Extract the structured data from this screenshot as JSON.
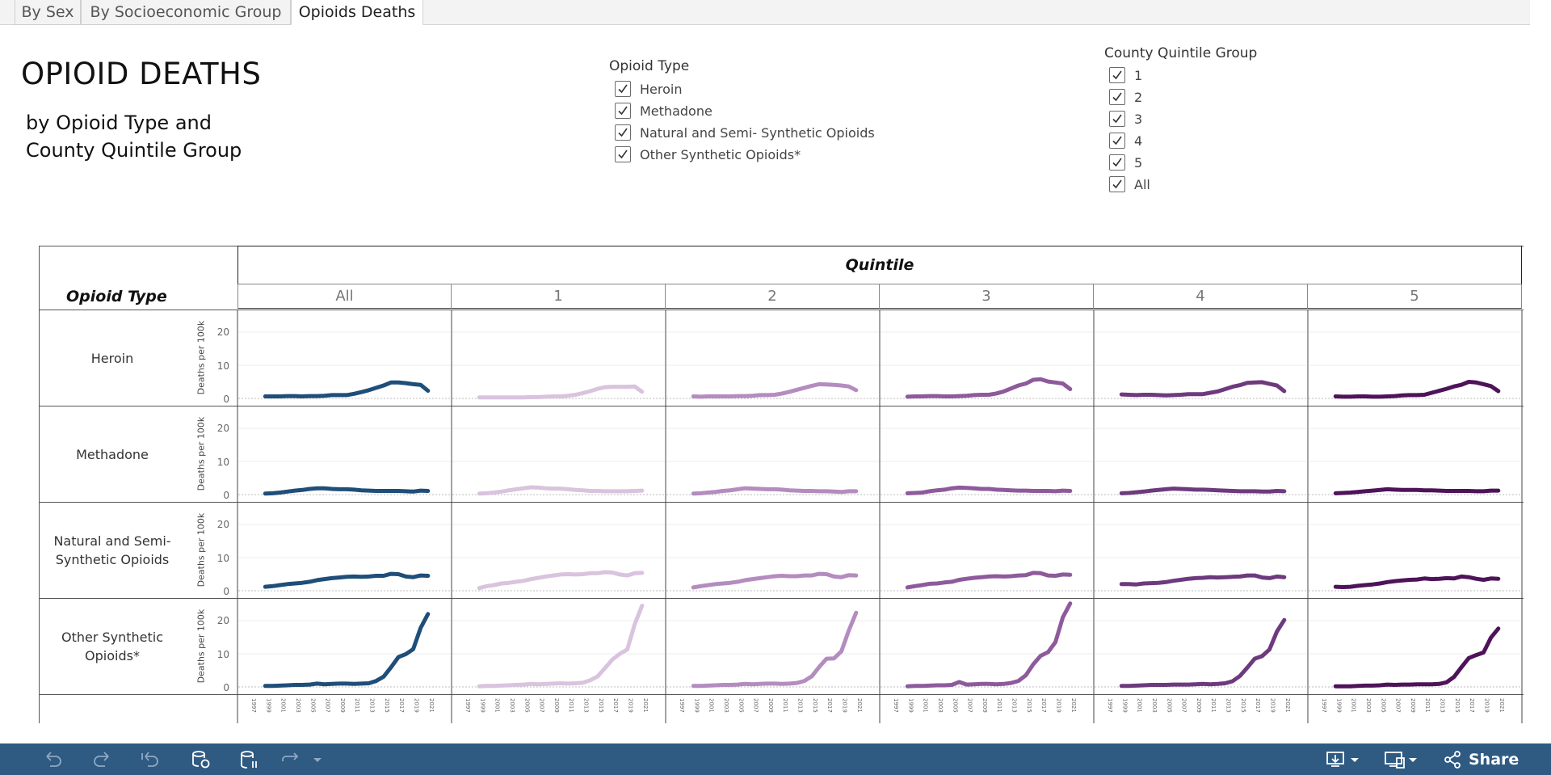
{
  "tabs": [
    {
      "label": "By Sex",
      "active": false
    },
    {
      "label": "By Socioeconomic Group",
      "active": false
    },
    {
      "label": "Opioids Deaths",
      "active": true
    }
  ],
  "title": "OPIOID DEATHS",
  "subtitle": "by Opioid Type and County Quintile Group",
  "filters": {
    "opioid_type": {
      "title": "Opioid Type",
      "options": [
        {
          "label": "Heroin",
          "checked": true
        },
        {
          "label": "Methadone",
          "checked": true
        },
        {
          "label": "Natural and Semi- Synthetic Opioids",
          "checked": true
        },
        {
          "label": "Other Synthetic Opioids*",
          "checked": true
        }
      ]
    },
    "quintile_group": {
      "title": "County Quintile Group",
      "options": [
        {
          "label": "1",
          "checked": true
        },
        {
          "label": "2",
          "checked": true
        },
        {
          "label": "3",
          "checked": true
        },
        {
          "label": "4",
          "checked": true
        },
        {
          "label": "5",
          "checked": true
        },
        {
          "label": "All",
          "checked": true
        }
      ]
    }
  },
  "grid": {
    "column_header_title": "Quintile",
    "row_header_title": "Opioid Type",
    "columns": [
      "All",
      "1",
      "2",
      "3",
      "4",
      "5"
    ],
    "rows": [
      "Heroin",
      "Methadone",
      "Natural and Semi-Synthetic Opioids",
      "Other Synthetic Opioids*"
    ],
    "y_axis_label": "Deaths per 100k",
    "y_ticks": [
      "20",
      "10",
      "0"
    ]
  },
  "chart_data": {
    "type": "line",
    "x": [
      1999,
      2000,
      2001,
      2002,
      2003,
      2004,
      2005,
      2006,
      2007,
      2008,
      2009,
      2010,
      2011,
      2012,
      2013,
      2014,
      2015,
      2016,
      2017,
      2018,
      2019,
      2020,
      2021
    ],
    "x_tick_labels": [
      "1997",
      "1999",
      "2001",
      "2003",
      "2005",
      "2007",
      "2009",
      "2011",
      "2013",
      "2015",
      "2017",
      "2019",
      "2021"
    ],
    "ylim": [
      0,
      25
    ],
    "ylabel": "Deaths per 100k",
    "column_colors": {
      "All": "#1f4e79",
      "1": "#d9c3de",
      "2": "#b48cbf",
      "3": "#8e5a9c",
      "4": "#6d3a7e",
      "5": "#4e1359"
    },
    "panels": {
      "Heroin": {
        "All": [
          0.6,
          0.6,
          0.6,
          0.7,
          0.7,
          0.6,
          0.7,
          0.7,
          0.8,
          1.0,
          1.0,
          1.0,
          1.4,
          1.9,
          2.5,
          3.2,
          3.9,
          4.8,
          4.8,
          4.6,
          4.3,
          4.1,
          2.3
        ],
        "1": [
          0.3,
          0.3,
          0.3,
          0.3,
          0.3,
          0.3,
          0.3,
          0.4,
          0.4,
          0.5,
          0.6,
          0.6,
          0.8,
          1.1,
          1.6,
          2.2,
          2.9,
          3.4,
          3.5,
          3.5,
          3.5,
          3.6,
          2.0
        ],
        "2": [
          0.6,
          0.5,
          0.6,
          0.6,
          0.6,
          0.6,
          0.7,
          0.7,
          0.8,
          1.0,
          1.0,
          1.1,
          1.5,
          2.0,
          2.6,
          3.2,
          3.8,
          4.3,
          4.2,
          4.1,
          3.9,
          3.6,
          2.5
        ],
        "3": [
          0.5,
          0.6,
          0.6,
          0.7,
          0.7,
          0.6,
          0.6,
          0.7,
          0.8,
          1.0,
          1.1,
          1.1,
          1.5,
          2.1,
          3.0,
          3.9,
          4.5,
          5.6,
          5.8,
          5.1,
          4.8,
          4.5,
          2.8
        ],
        "4": [
          1.2,
          1.1,
          1.0,
          1.1,
          1.1,
          1.0,
          0.9,
          1.0,
          1.1,
          1.3,
          1.3,
          1.3,
          1.7,
          2.1,
          2.8,
          3.5,
          4.0,
          4.7,
          4.8,
          4.9,
          4.4,
          3.9,
          2.2
        ],
        "5": [
          0.6,
          0.5,
          0.5,
          0.6,
          0.6,
          0.5,
          0.5,
          0.6,
          0.7,
          0.9,
          1.0,
          1.0,
          1.1,
          1.7,
          2.3,
          2.9,
          3.6,
          4.1,
          5.0,
          4.8,
          4.3,
          3.7,
          2.2
        ]
      },
      "Methadone": {
        "All": [
          0.3,
          0.4,
          0.6,
          0.9,
          1.2,
          1.4,
          1.7,
          1.9,
          1.9,
          1.7,
          1.6,
          1.6,
          1.5,
          1.3,
          1.2,
          1.1,
          1.1,
          1.1,
          1.1,
          1.0,
          0.9,
          1.2,
          1.1
        ],
        "1": [
          0.3,
          0.4,
          0.6,
          0.9,
          1.3,
          1.6,
          1.9,
          2.2,
          2.1,
          1.9,
          1.8,
          1.8,
          1.6,
          1.4,
          1.3,
          1.1,
          1.1,
          1.0,
          1.0,
          1.0,
          1.0,
          1.1,
          1.2
        ],
        "2": [
          0.3,
          0.4,
          0.6,
          0.8,
          1.1,
          1.3,
          1.6,
          1.9,
          1.8,
          1.7,
          1.6,
          1.6,
          1.5,
          1.3,
          1.2,
          1.1,
          1.1,
          1.0,
          1.0,
          0.9,
          0.8,
          1.0,
          1.0
        ],
        "3": [
          0.4,
          0.5,
          0.6,
          1.0,
          1.3,
          1.5,
          1.9,
          2.1,
          2.0,
          1.9,
          1.7,
          1.7,
          1.5,
          1.4,
          1.3,
          1.2,
          1.2,
          1.1,
          1.1,
          1.1,
          1.0,
          1.2,
          1.1
        ],
        "4": [
          0.4,
          0.5,
          0.7,
          0.9,
          1.2,
          1.4,
          1.6,
          1.8,
          1.7,
          1.6,
          1.5,
          1.5,
          1.4,
          1.3,
          1.2,
          1.1,
          1.0,
          1.0,
          1.0,
          0.9,
          0.9,
          1.1,
          1.0
        ],
        "5": [
          0.4,
          0.5,
          0.6,
          0.8,
          1.0,
          1.2,
          1.4,
          1.6,
          1.5,
          1.4,
          1.4,
          1.4,
          1.3,
          1.3,
          1.2,
          1.1,
          1.1,
          1.1,
          1.1,
          1.0,
          1.0,
          1.2,
          1.2
        ]
      },
      "Natural and Semi-Synthetic Opioids": {
        "All": [
          1.2,
          1.4,
          1.7,
          2.0,
          2.2,
          2.4,
          2.7,
          3.2,
          3.5,
          3.8,
          4.0,
          4.2,
          4.3,
          4.2,
          4.3,
          4.5,
          4.5,
          5.1,
          5.0,
          4.3,
          4.1,
          4.6,
          4.5
        ],
        "1": [
          0.8,
          1.4,
          1.7,
          2.2,
          2.4,
          2.7,
          3.0,
          3.5,
          3.9,
          4.3,
          4.6,
          4.9,
          5.0,
          4.9,
          5.0,
          5.3,
          5.3,
          5.6,
          5.5,
          4.9,
          4.6,
          5.3,
          5.4
        ],
        "2": [
          1.0,
          1.4,
          1.7,
          2.0,
          2.2,
          2.4,
          2.7,
          3.2,
          3.5,
          3.8,
          4.1,
          4.4,
          4.5,
          4.4,
          4.4,
          4.6,
          4.6,
          5.1,
          5.0,
          4.3,
          4.1,
          4.7,
          4.6
        ],
        "3": [
          1.0,
          1.4,
          1.7,
          2.1,
          2.2,
          2.5,
          2.7,
          3.3,
          3.6,
          3.9,
          4.1,
          4.3,
          4.4,
          4.3,
          4.4,
          4.6,
          4.7,
          5.4,
          5.3,
          4.6,
          4.5,
          4.9,
          4.8
        ],
        "4": [
          2.0,
          2.0,
          1.9,
          2.2,
          2.3,
          2.4,
          2.6,
          3.0,
          3.3,
          3.6,
          3.8,
          3.9,
          4.1,
          4.0,
          4.1,
          4.2,
          4.3,
          4.6,
          4.6,
          4.0,
          3.8,
          4.3,
          4.1
        ],
        "5": [
          1.2,
          1.1,
          1.2,
          1.5,
          1.7,
          1.9,
          2.2,
          2.6,
          2.9,
          3.1,
          3.3,
          3.4,
          3.7,
          3.5,
          3.6,
          3.8,
          3.7,
          4.3,
          4.1,
          3.6,
          3.3,
          3.7,
          3.6
        ]
      },
      "Other Synthetic Opioids*": {
        "All": [
          0.3,
          0.3,
          0.4,
          0.5,
          0.6,
          0.6,
          0.7,
          1.0,
          0.8,
          0.9,
          1.0,
          1.0,
          0.9,
          1.0,
          1.1,
          1.8,
          3.1,
          5.9,
          9.0,
          9.9,
          11.4,
          17.8,
          22.0
        ],
        "1": [
          0.2,
          0.3,
          0.3,
          0.4,
          0.5,
          0.6,
          0.7,
          0.9,
          0.8,
          0.9,
          1.0,
          1.1,
          1.0,
          1.1,
          1.3,
          2.0,
          3.2,
          5.7,
          8.3,
          10.0,
          11.3,
          18.9,
          24.5
        ],
        "2": [
          0.3,
          0.3,
          0.4,
          0.5,
          0.6,
          0.6,
          0.7,
          0.9,
          0.8,
          0.9,
          1.0,
          1.0,
          0.9,
          1.0,
          1.2,
          1.8,
          3.2,
          6.0,
          8.5,
          8.6,
          10.7,
          17.0,
          22.4
        ],
        "3": [
          0.2,
          0.3,
          0.3,
          0.4,
          0.5,
          0.5,
          0.6,
          1.5,
          0.7,
          0.8,
          0.9,
          0.9,
          0.8,
          0.9,
          1.2,
          1.8,
          3.5,
          6.8,
          9.4,
          10.5,
          13.5,
          21.0,
          25.2
        ],
        "4": [
          0.3,
          0.3,
          0.4,
          0.5,
          0.6,
          0.6,
          0.6,
          0.7,
          0.7,
          0.7,
          0.8,
          0.9,
          0.8,
          0.9,
          1.1,
          1.7,
          3.3,
          5.8,
          8.5,
          9.3,
          11.3,
          16.7,
          20.2
        ],
        "5": [
          0.2,
          0.2,
          0.2,
          0.3,
          0.4,
          0.4,
          0.5,
          0.7,
          0.6,
          0.7,
          0.7,
          0.8,
          0.8,
          0.8,
          0.9,
          1.4,
          3.0,
          5.9,
          8.7,
          9.6,
          10.4,
          14.9,
          17.6
        ]
      }
    }
  },
  "toolbar": {
    "icons": [
      "undo-icon",
      "redo-icon",
      "revert-icon",
      "refresh-icon",
      "pause-icon",
      "forward-icon"
    ],
    "share_label": "Share"
  }
}
